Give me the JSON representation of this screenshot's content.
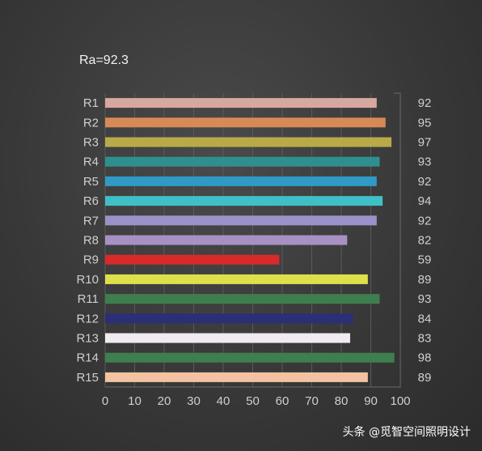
{
  "chart_data": {
    "type": "bar",
    "orientation": "horizontal",
    "title": "Ra=92.3",
    "categories": [
      "R1",
      "R2",
      "R3",
      "R4",
      "R5",
      "R6",
      "R7",
      "R8",
      "R9",
      "R10",
      "R11",
      "R12",
      "R13",
      "R14",
      "R15"
    ],
    "values": [
      92,
      95,
      97,
      93,
      92,
      94,
      92,
      82,
      59,
      89,
      93,
      84,
      83,
      98,
      89
    ],
    "colors": [
      "#d7a8a0",
      "#d78a55",
      "#b9aa48",
      "#2f8f8f",
      "#2f9ac6",
      "#3fbfc6",
      "#9a93c9",
      "#a791c4",
      "#d92a2a",
      "#dde04a",
      "#3e7e4e",
      "#2a2f78",
      "#f1eaf1",
      "#3f7e4e",
      "#f3c2a0"
    ],
    "xlim": [
      0,
      100
    ],
    "xticks": [
      "0",
      "10",
      "20",
      "30",
      "40",
      "50",
      "60",
      "70",
      "80",
      "90",
      "100"
    ],
    "grid": true,
    "legend": "none"
  },
  "watermark": "头条 @觅智空间照明设计"
}
